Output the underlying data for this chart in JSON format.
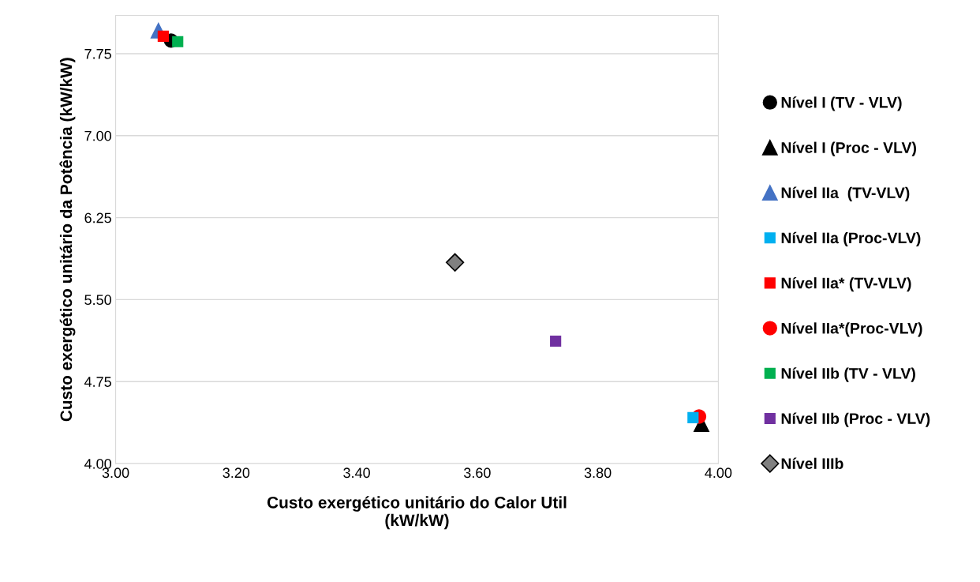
{
  "chart_data": {
    "type": "scatter",
    "xlabel": "Custo exergético unitário do Calor Util\n(kW/kW)",
    "ylabel": "Custo exergético unitário da Potência (kW/kW)",
    "xlim": [
      3.0,
      4.0
    ],
    "xticks": [
      {
        "value": 3.0,
        "label": "3.00"
      },
      {
        "value": 3.2,
        "label": "3.20"
      },
      {
        "value": 3.4,
        "label": "3.40"
      },
      {
        "value": 3.6,
        "label": "3.60"
      },
      {
        "value": 3.8,
        "label": "3.80"
      },
      {
        "value": 4.0,
        "label": "4.00"
      }
    ],
    "ylim": [
      4.0,
      8.1
    ],
    "yticks": [
      {
        "value": 4.0,
        "label": "4.00"
      },
      {
        "value": 4.75,
        "label": "4.75"
      },
      {
        "value": 5.5,
        "label": "5.50"
      },
      {
        "value": 6.25,
        "label": "6.25"
      },
      {
        "value": 7.0,
        "label": "7.00"
      },
      {
        "value": 7.75,
        "label": "7.75"
      }
    ],
    "grid": "y",
    "legend": "right",
    "series": [
      {
        "name": "Nível I (TV - VLV)",
        "color": "#000000",
        "marker": "circle",
        "x": [
          3.092
        ],
        "values": [
          7.87
        ]
      },
      {
        "name": "Nível I (Proc - VLV)",
        "color": "#000000",
        "marker": "triangle",
        "x": [
          3.972
        ],
        "values": [
          4.36
        ]
      },
      {
        "name": "Nível IIa  (TV-VLV)",
        "color": "#4472c4",
        "marker": "triangle",
        "x": [
          3.071
        ],
        "values": [
          7.96
        ]
      },
      {
        "name": "Nível IIa (Proc-VLV)",
        "color": "#00b0f0",
        "marker": "square",
        "x": [
          3.958
        ],
        "values": [
          4.42
        ]
      },
      {
        "name": "Nível IIa* (TV-VLV)",
        "color": "#ff0000",
        "marker": "square",
        "x": [
          3.079
        ],
        "values": [
          7.91
        ]
      },
      {
        "name": "Nível IIa*(Proc-VLV)",
        "color": "#ff0000",
        "marker": "circle",
        "x": [
          3.968
        ],
        "values": [
          4.43
        ]
      },
      {
        "name": "Nível IIb (TV - VLV)",
        "color": "#00b050",
        "marker": "square",
        "x": [
          3.103
        ],
        "values": [
          7.86
        ]
      },
      {
        "name": "Nível IIb (Proc - VLV)",
        "color": "#7030a0",
        "marker": "square",
        "x": [
          3.73
        ],
        "values": [
          5.12
        ]
      },
      {
        "name": "Nível IIIb",
        "color": "#808080",
        "marker": "diamond",
        "x": [
          3.563
        ],
        "values": [
          5.84
        ]
      }
    ]
  }
}
